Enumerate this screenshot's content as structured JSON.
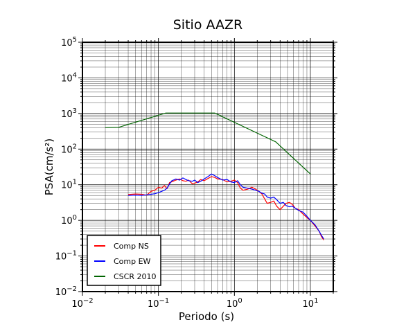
{
  "chart_data": {
    "type": "line",
    "title": "Sitio AAZR",
    "xlabel": "Periodo (s)",
    "ylabel": "PSA(cm/s²)",
    "xscale": "log",
    "yscale": "log",
    "xlim": [
      0.01,
      20
    ],
    "ylim": [
      0.01,
      100000
    ],
    "grid": true,
    "legend_position": "bottom-left",
    "x_ticks": [
      {
        "base": "10",
        "exp": "−2",
        "value": 0.01
      },
      {
        "base": "10",
        "exp": "−1",
        "value": 0.1
      },
      {
        "base": "10",
        "exp": "0",
        "value": 1
      },
      {
        "base": "10",
        "exp": "1",
        "value": 10
      }
    ],
    "y_ticks": [
      {
        "base": "10",
        "exp": "−2",
        "value": 0.01
      },
      {
        "base": "10",
        "exp": "−1",
        "value": 0.1
      },
      {
        "base": "10",
        "exp": "0",
        "value": 1
      },
      {
        "base": "10",
        "exp": "1",
        "value": 10
      },
      {
        "base": "10",
        "exp": "2",
        "value": 100
      },
      {
        "base": "10",
        "exp": "3",
        "value": 1000
      },
      {
        "base": "10",
        "exp": "4",
        "value": 10000
      },
      {
        "base": "10",
        "exp": "5",
        "value": 100000
      }
    ],
    "series": [
      {
        "name": "Comp NS",
        "color": "#ff0000",
        "points": [
          [
            0.04,
            5.3
          ],
          [
            0.05,
            5.5
          ],
          [
            0.06,
            5.4
          ],
          [
            0.07,
            5.1
          ],
          [
            0.08,
            6.5
          ],
          [
            0.09,
            7.0
          ],
          [
            0.1,
            8.5
          ],
          [
            0.11,
            8.0
          ],
          [
            0.12,
            9.5
          ],
          [
            0.13,
            7.8
          ],
          [
            0.14,
            11.5
          ],
          [
            0.15,
            12.0
          ],
          [
            0.17,
            13.5
          ],
          [
            0.19,
            14.5
          ],
          [
            0.21,
            13.0
          ],
          [
            0.23,
            12.5
          ],
          [
            0.25,
            13.5
          ],
          [
            0.28,
            10.5
          ],
          [
            0.3,
            11.0
          ],
          [
            0.33,
            12.0
          ],
          [
            0.36,
            14.0
          ],
          [
            0.4,
            13.0
          ],
          [
            0.45,
            15.0
          ],
          [
            0.5,
            17.0
          ],
          [
            0.55,
            16.0
          ],
          [
            0.6,
            14.5
          ],
          [
            0.7,
            14.0
          ],
          [
            0.8,
            12.0
          ],
          [
            0.9,
            12.5
          ],
          [
            1.0,
            13.5
          ],
          [
            1.1,
            11.5
          ],
          [
            1.2,
            8.0
          ],
          [
            1.3,
            7.0
          ],
          [
            1.5,
            7.5
          ],
          [
            1.7,
            8.5
          ],
          [
            1.9,
            7.5
          ],
          [
            2.1,
            6.5
          ],
          [
            2.3,
            5.5
          ],
          [
            2.5,
            4.0
          ],
          [
            2.7,
            3.0
          ],
          [
            3.0,
            3.2
          ],
          [
            3.3,
            3.5
          ],
          [
            3.6,
            2.5
          ],
          [
            4.0,
            2.0
          ],
          [
            4.4,
            2.5
          ],
          [
            4.8,
            3.0
          ],
          [
            5.3,
            3.2
          ],
          [
            5.8,
            2.8
          ],
          [
            6.3,
            2.2
          ],
          [
            7.0,
            2.0
          ],
          [
            8.0,
            1.5
          ],
          [
            9.0,
            1.2
          ],
          [
            10.0,
            1.0
          ],
          [
            11.5,
            0.7
          ],
          [
            13.0,
            0.5
          ],
          [
            14.0,
            0.35
          ],
          [
            15.0,
            0.28
          ]
        ]
      },
      {
        "name": "Comp EW",
        "color": "#0000ff",
        "points": [
          [
            0.04,
            5.0
          ],
          [
            0.05,
            5.1
          ],
          [
            0.06,
            5.0
          ],
          [
            0.07,
            5.2
          ],
          [
            0.08,
            5.4
          ],
          [
            0.09,
            5.6
          ],
          [
            0.1,
            6.0
          ],
          [
            0.11,
            6.5
          ],
          [
            0.12,
            7.0
          ],
          [
            0.13,
            8.0
          ],
          [
            0.14,
            10.5
          ],
          [
            0.15,
            13.0
          ],
          [
            0.17,
            14.5
          ],
          [
            0.19,
            13.5
          ],
          [
            0.21,
            15.5
          ],
          [
            0.23,
            14.0
          ],
          [
            0.25,
            13.0
          ],
          [
            0.28,
            12.5
          ],
          [
            0.3,
            13.5
          ],
          [
            0.33,
            11.5
          ],
          [
            0.36,
            12.5
          ],
          [
            0.4,
            14.5
          ],
          [
            0.45,
            17.0
          ],
          [
            0.5,
            20.0
          ],
          [
            0.55,
            18.0
          ],
          [
            0.6,
            16.0
          ],
          [
            0.7,
            13.5
          ],
          [
            0.8,
            14.0
          ],
          [
            0.9,
            12.0
          ],
          [
            1.0,
            11.5
          ],
          [
            1.1,
            13.0
          ],
          [
            1.2,
            10.0
          ],
          [
            1.3,
            8.5
          ],
          [
            1.5,
            8.0
          ],
          [
            1.7,
            7.5
          ],
          [
            1.9,
            7.0
          ],
          [
            2.1,
            6.5
          ],
          [
            2.3,
            5.8
          ],
          [
            2.5,
            5.5
          ],
          [
            2.7,
            4.5
          ],
          [
            3.0,
            4.2
          ],
          [
            3.3,
            4.5
          ],
          [
            3.6,
            3.8
          ],
          [
            4.0,
            3.0
          ],
          [
            4.4,
            3.2
          ],
          [
            4.8,
            2.6
          ],
          [
            5.3,
            2.4
          ],
          [
            5.8,
            2.5
          ],
          [
            6.3,
            2.2
          ],
          [
            7.0,
            1.9
          ],
          [
            8.0,
            1.7
          ],
          [
            9.0,
            1.3
          ],
          [
            10.0,
            1.0
          ],
          [
            11.5,
            0.75
          ],
          [
            13.0,
            0.5
          ],
          [
            14.0,
            0.38
          ],
          [
            15.0,
            0.3
          ]
        ]
      },
      {
        "name": "CSCR 2010",
        "color": "#006400",
        "points": [
          [
            0.02,
            400
          ],
          [
            0.03,
            410
          ],
          [
            0.125,
            1030
          ],
          [
            0.55,
            1030
          ],
          [
            3.5,
            160
          ],
          [
            10.0,
            20
          ]
        ]
      }
    ]
  }
}
